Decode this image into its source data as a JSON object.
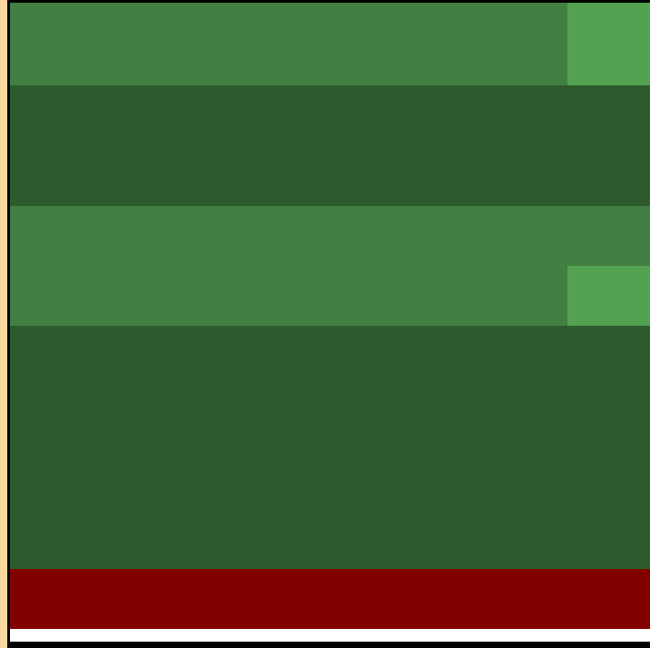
{
  "colors": {
    "land_edge": "#fad9a1",
    "frame": "#000000",
    "grass_medium": "#427f42",
    "grass_light": "#52a252",
    "grass_dark": "#2d5b2d",
    "lava_red": "#820000",
    "strip": "#ffffff"
  },
  "tiles": [
    {
      "name": "grass-row-1",
      "color": "grass_medium"
    },
    {
      "name": "grass-row-1-highlight",
      "color": "grass_light"
    },
    {
      "name": "forest-band-1",
      "color": "grass_dark"
    },
    {
      "name": "grass-band-2",
      "color": "grass_medium"
    },
    {
      "name": "grass-band-2-highlight",
      "color": "grass_light"
    },
    {
      "name": "forest-band-2",
      "color": "grass_dark"
    },
    {
      "name": "hazard-band",
      "color": "lava_red"
    }
  ]
}
